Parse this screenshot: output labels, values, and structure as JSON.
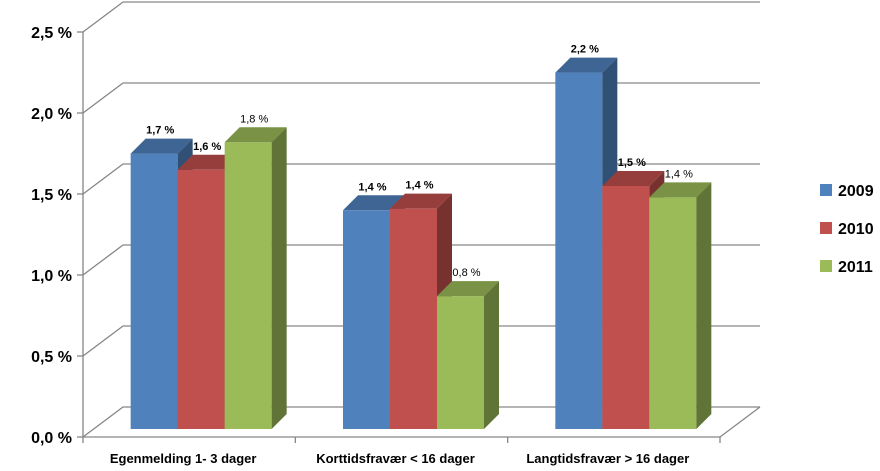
{
  "chart_data": {
    "type": "bar",
    "categories": [
      "Egenmelding 1- 3 dager",
      "Korttidsfravær < 16 dager",
      "Langtidsfravær > 16 dager"
    ],
    "series": [
      {
        "name": "2009",
        "values": [
          1.7,
          1.35,
          2.2
        ],
        "labels": [
          "1,7 %",
          "1,4 %",
          "2,2 %"
        ],
        "color": "#4f81bd"
      },
      {
        "name": "2010",
        "values": [
          1.6,
          1.36,
          1.5
        ],
        "labels": [
          "1,6 %",
          "1,4 %",
          "1,5 %"
        ],
        "color": "#c0504d"
      },
      {
        "name": "2011",
        "values": [
          1.77,
          0.82,
          1.43
        ],
        "labels": [
          "1,8 %",
          "0,8 %",
          "1,4 %"
        ],
        "color": "#9bbb59"
      }
    ],
    "y_ticks": [
      {
        "value": 0.0,
        "label": "0,0 %"
      },
      {
        "value": 0.5,
        "label": "0,5 %"
      },
      {
        "value": 1.0,
        "label": "1,0 %"
      },
      {
        "value": 1.5,
        "label": "1,5 %"
      },
      {
        "value": 2.0,
        "label": "2,0 %"
      },
      {
        "value": 2.5,
        "label": "2,5 %"
      }
    ],
    "ylim": [
      0,
      2.5
    ],
    "grid": true,
    "legend_position": "right",
    "title": "",
    "xlabel": "",
    "ylabel": "",
    "colors": {
      "grid": "#868686",
      "wall": "#ffffff",
      "axis_text": "#000000"
    }
  }
}
